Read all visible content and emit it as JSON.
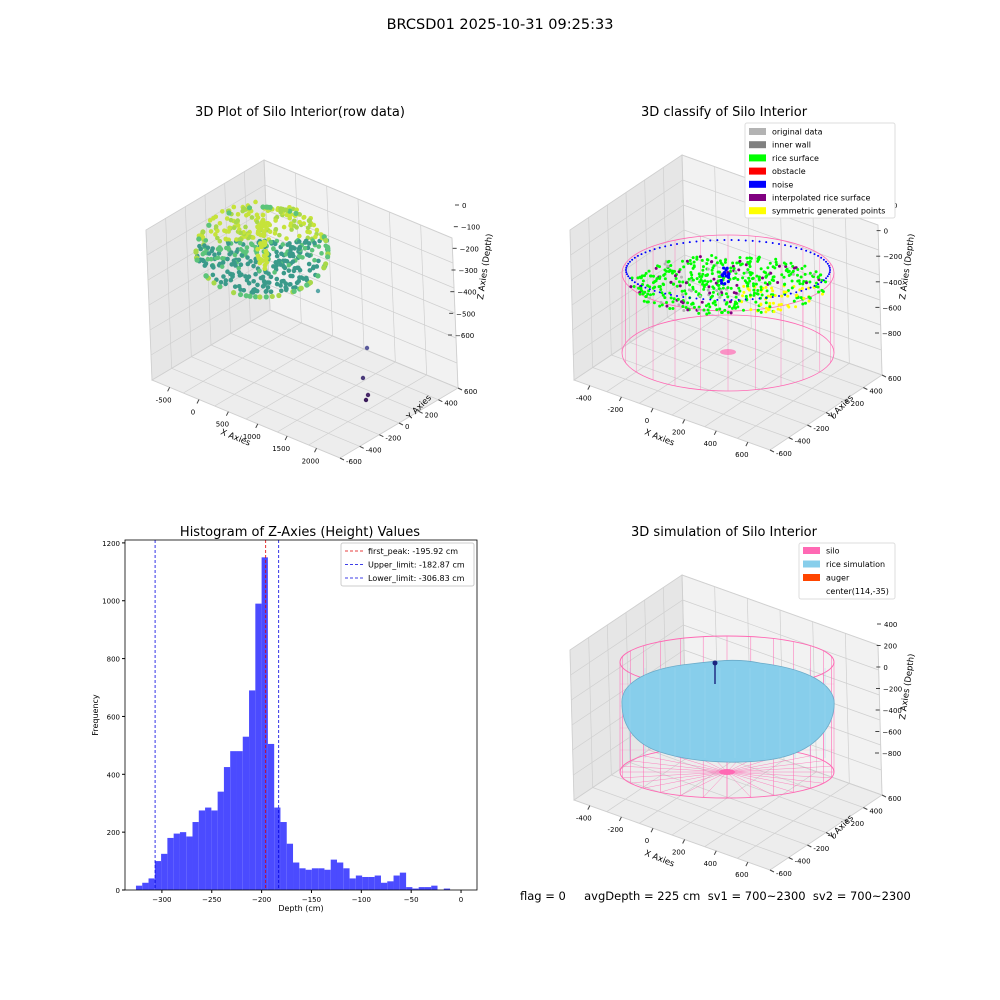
{
  "figure": {
    "title": "BRCSD01 2025-10-31 09:25:33",
    "status": "flag = 0     avgDepth = 225 cm  sv1 = 700~2300  sv2 = 700~2300"
  },
  "colors": {
    "hist_bar": "#4b4bff",
    "first_peak_line": "#e00000",
    "limit_line": "#0000e0",
    "silo": "#ff69b4",
    "rice": "#87ceeb",
    "auger": "#ff4500",
    "surface_gradient": [
      "#3a9a8a",
      "#5cc47a",
      "#a8d84a",
      "#c6e33a"
    ],
    "classify": {
      "original data": "#b3b3b3",
      "inner wall": "#808080",
      "rice surface": "#00ff00",
      "obstacle": "#ff0000",
      "noise": "#0000ff",
      "interpolated rice surface": "#800080",
      "symmetric generated points": "#ffff00"
    }
  },
  "chart_data": [
    {
      "type": "scatter",
      "title": "3D Plot of Silo Interior(row data)",
      "xlabel": "X Axies",
      "ylabel": "Y Axies",
      "zlabel": "Z Axies (Depth)",
      "x_ticks": [
        "-500",
        "0",
        "500",
        "1000",
        "1500",
        "2000"
      ],
      "y_ticks": [
        "-600",
        "-400",
        "-200",
        "0",
        "200",
        "400",
        "600"
      ],
      "z_ticks": [
        "0",
        "−100",
        "−200",
        "−300",
        "−400",
        "−500",
        "−600"
      ],
      "outlier_points_note": "few outlier points near x≈2000"
    },
    {
      "type": "scatter",
      "title": "3D classify of Silo Interior",
      "xlabel": "X Axies",
      "ylabel": "Y Axies",
      "zlabel": "Z Axies (Depth)",
      "x_ticks": [
        "-400",
        "-200",
        "0",
        "200",
        "400",
        "600"
      ],
      "y_ticks": [
        "-600",
        "-400",
        "-200",
        "0",
        "200",
        "400",
        "600"
      ],
      "z_ticks": [
        "200",
        "0",
        "−200",
        "−400",
        "−600",
        "−800"
      ],
      "legend": [
        "original data",
        "inner wall",
        "rice surface",
        "obstacle",
        "noise",
        "interpolated rice surface",
        "symmetric generated points"
      ],
      "legend_loc": "top-right"
    },
    {
      "type": "bar",
      "title": "Histogram of Z-Axies (Height) Values",
      "xlabel": "Depth (cm)",
      "ylabel": "Frequency",
      "xlim": [
        -337,
        16
      ],
      "ylim": [
        0,
        1210
      ],
      "x_ticks": [
        -300,
        -250,
        -200,
        -150,
        -100,
        -50,
        0
      ],
      "y_ticks": [
        0,
        200,
        400,
        600,
        800,
        1000,
        1200
      ],
      "bin_edges_start": -326,
      "bin_width": 6.3,
      "values": [
        15,
        25,
        40,
        100,
        125,
        180,
        195,
        200,
        185,
        235,
        275,
        285,
        275,
        340,
        425,
        480,
        480,
        530,
        690,
        990,
        1150,
        505,
        285,
        235,
        160,
        95,
        75,
        70,
        75,
        75,
        70,
        105,
        95,
        75,
        40,
        50,
        45,
        45,
        50,
        25,
        30,
        50,
        60,
        10,
        5,
        10,
        10,
        15,
        0,
        5
      ],
      "vlines": [
        {
          "label": "first_peak: -195.92 cm",
          "x": -195.92,
          "kind": "first_peak"
        },
        {
          "label": "Upper_limit: -182.87 cm",
          "x": -182.87,
          "kind": "limit"
        },
        {
          "label": "Lower_limit: -306.83 cm",
          "x": -306.83,
          "kind": "limit"
        }
      ],
      "legend_loc": "top-right"
    },
    {
      "type": "scatter",
      "title": "3D simulation of Silo Interior",
      "xlabel": "X Axies",
      "ylabel": "Y Axies",
      "zlabel": "Z Axies (Depth)",
      "x_ticks": [
        "-400",
        "-200",
        "0",
        "200",
        "400",
        "600"
      ],
      "y_ticks": [
        "-600",
        "-400",
        "-200",
        "0",
        "200",
        "400",
        "600"
      ],
      "z_ticks": [
        "400",
        "200",
        "0",
        "−200",
        "−400",
        "−600",
        "−800"
      ],
      "legend": [
        "silo",
        "rice simulation",
        "auger",
        "center(114,-35)"
      ],
      "legend_loc": "top-right"
    }
  ]
}
